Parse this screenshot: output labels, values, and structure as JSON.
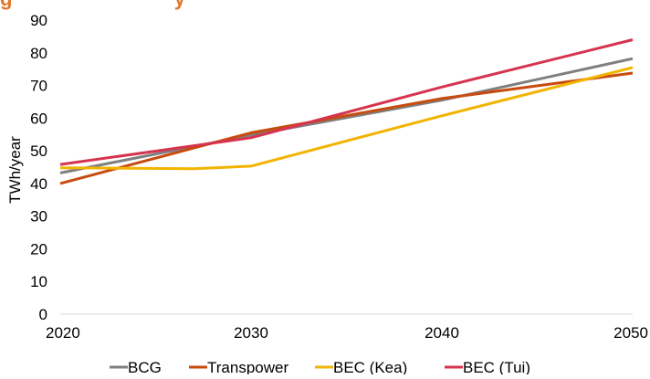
{
  "colors": {
    "accent": "#e0772a"
  },
  "chart_data": {
    "type": "line",
    "title": "",
    "xlabel": "",
    "ylabel": "TWh/year",
    "x": [
      2020,
      2030,
      2040,
      2050
    ],
    "xlim": [
      2020,
      2050
    ],
    "ylim": [
      0,
      90
    ],
    "yticks": [
      0,
      10,
      20,
      30,
      40,
      50,
      60,
      70,
      80,
      90
    ],
    "xticks": [
      2020,
      2030,
      2040,
      2050
    ],
    "grid": false,
    "legend": "bottom",
    "series": [
      {
        "name": "BCG",
        "color": "#7f7f7f",
        "points": [
          [
            2020,
            43.2
          ],
          [
            2030,
            54.8
          ],
          [
            2040,
            65.5
          ],
          [
            2050,
            78.2
          ]
        ]
      },
      {
        "name": "Transpower",
        "color": "#c84b0e",
        "points": [
          [
            2020,
            40.0
          ],
          [
            2030,
            55.5
          ],
          [
            2040,
            66.0
          ],
          [
            2050,
            73.8
          ]
        ]
      },
      {
        "name": "BEC (Kea)",
        "color": "#f2b400",
        "points": [
          [
            2020,
            44.8
          ],
          [
            2027,
            44.5
          ],
          [
            2030,
            45.3
          ],
          [
            2040,
            60.7
          ],
          [
            2050,
            75.5
          ]
        ]
      },
      {
        "name": "BEC (Tui)",
        "color": "#d6334f",
        "points": [
          [
            2020,
            45.8
          ],
          [
            2030,
            54.0
          ],
          [
            2040,
            69.5
          ],
          [
            2050,
            84.0
          ]
        ]
      }
    ]
  }
}
